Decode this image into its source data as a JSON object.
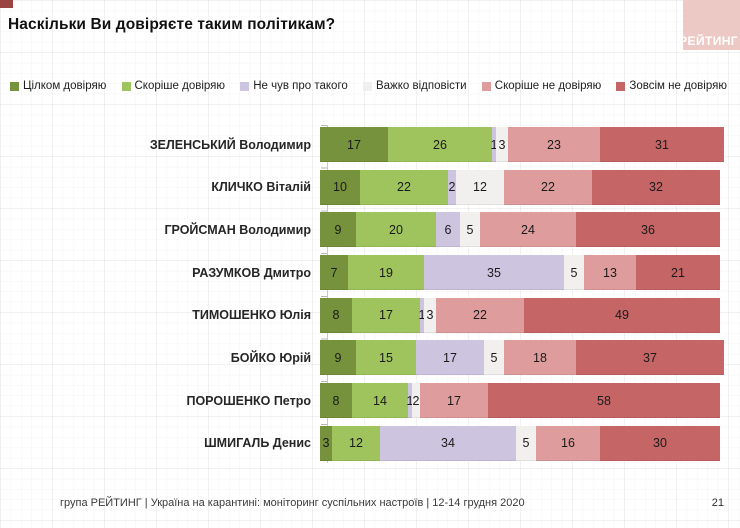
{
  "title": "Наскільки Ви довіряєте таким політикам?",
  "logo": {
    "text": "РЕЙТИНГ"
  },
  "brand": {
    "corner_square_color": "#9c4343",
    "logo_bg_color": "#ecc9c4",
    "logo_text_color": "#ffffff"
  },
  "chart_data": {
    "type": "bar",
    "variant": "stacked-horizontal",
    "unit": "%",
    "xlim": [
      0,
      100
    ],
    "grid": "faint graph-paper background",
    "legend_position": "top",
    "categories": [
      "Цілком довіряю",
      "Скоріше довіряю",
      "Не чув про такого",
      "Важко відповісти",
      "Скоріше не довіряю",
      "Зовсім не довіряю"
    ],
    "colors": [
      "#76923c",
      "#9fc35d",
      "#cdc4e0",
      "#f1f0ee",
      "#de9d9c",
      "#c56565"
    ],
    "rows": [
      {
        "name": "ЗЕЛЕНСЬКИЙ Володимир",
        "values": [
          17,
          26,
          1,
          3,
          23,
          31
        ]
      },
      {
        "name": "КЛИЧКО Віталій",
        "values": [
          10,
          22,
          2,
          12,
          22,
          32
        ]
      },
      {
        "name": "ГРОЙСМАН Володимир",
        "values": [
          9,
          20,
          6,
          5,
          24,
          36
        ]
      },
      {
        "name": "РАЗУМКОВ Дмитро",
        "values": [
          7,
          19,
          35,
          5,
          13,
          21
        ]
      },
      {
        "name": "ТИМОШЕНКО Юлія",
        "values": [
          8,
          17,
          1,
          3,
          22,
          49
        ]
      },
      {
        "name": "БОЙКО Юрій",
        "values": [
          9,
          15,
          17,
          5,
          18,
          37
        ]
      },
      {
        "name": "ПОРОШЕНКО Петро",
        "values": [
          8,
          14,
          1,
          2,
          17,
          58
        ]
      },
      {
        "name": "ШМИГАЛЬ Денис",
        "values": [
          3,
          12,
          34,
          5,
          16,
          30
        ]
      }
    ]
  },
  "footer": {
    "source": "група РЕЙТИНГ | Україна на карантині: моніторинг суспільних настроїв | 12-14 грудня 2020",
    "page": "21"
  }
}
